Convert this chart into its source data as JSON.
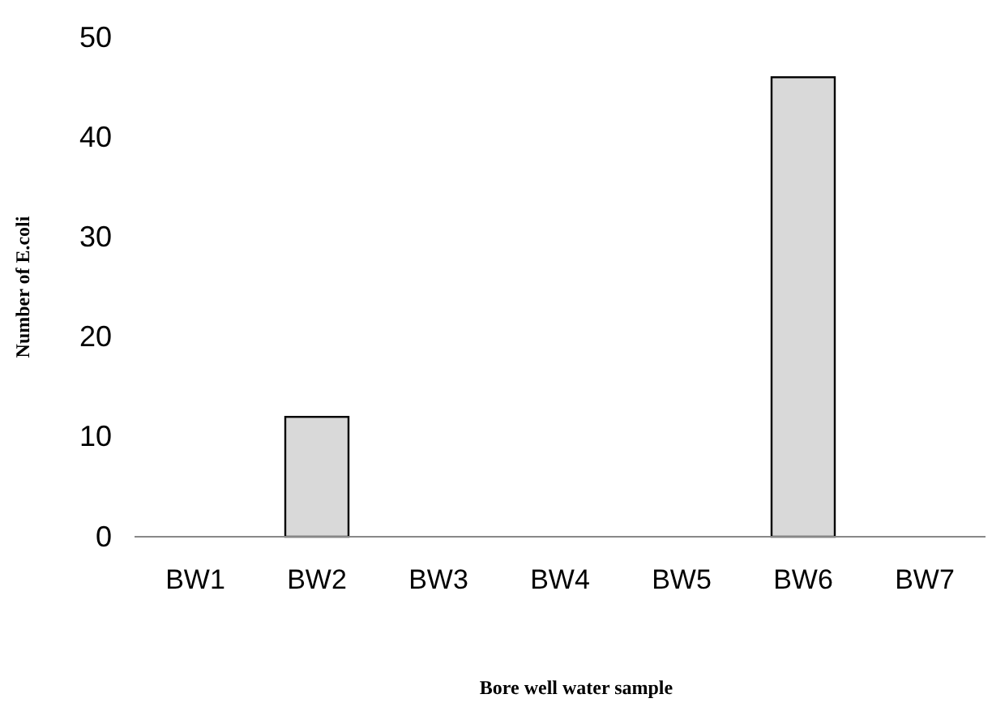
{
  "chart_data": {
    "type": "bar",
    "categories": [
      "BW1",
      "BW2",
      "BW3",
      "BW4",
      "BW5",
      "BW6",
      "BW7"
    ],
    "values": [
      0,
      12,
      0,
      0,
      0,
      46,
      0
    ],
    "color": "#d9d9d9",
    "xlabel": "Bore well water sample",
    "ylabel": "Number of E.coli",
    "ylim": [
      0,
      50
    ],
    "yticks": [
      0,
      10,
      20,
      30,
      40,
      50
    ],
    "grid": false
  }
}
